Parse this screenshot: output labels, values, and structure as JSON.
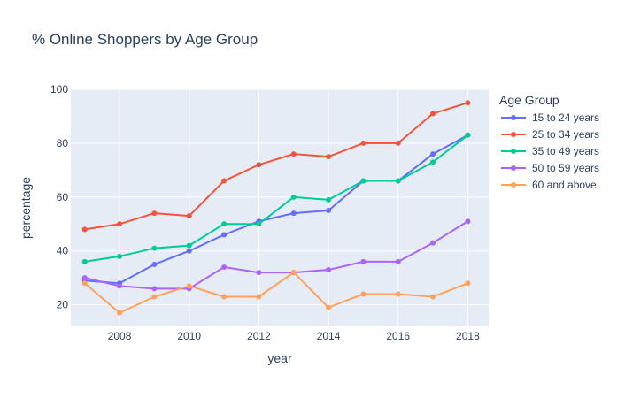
{
  "chart_data": {
    "type": "line",
    "title": "% Online Shoppers by Age Group",
    "xlabel": "year",
    "ylabel": "percentage",
    "legend_title": "Age Group",
    "legend_position": "right",
    "grid": true,
    "xlim": [
      2006.6,
      2018.6
    ],
    "ylim": [
      12,
      100
    ],
    "x": [
      2007,
      2008,
      2009,
      2010,
      2011,
      2012,
      2013,
      2014,
      2015,
      2016,
      2017,
      2018
    ],
    "x_ticks": [
      2008,
      2010,
      2012,
      2014,
      2016,
      2018
    ],
    "y_ticks": [
      20,
      40,
      60,
      80,
      100
    ],
    "series": [
      {
        "name": "15 to 24 years",
        "color": "#636efa",
        "values": [
          29,
          28,
          35,
          40,
          46,
          51,
          54,
          55,
          66,
          66,
          76,
          83
        ]
      },
      {
        "name": "25 to 34 years",
        "color": "#ef553b",
        "values": [
          48,
          50,
          54,
          53,
          66,
          72,
          76,
          75,
          80,
          80,
          91,
          95
        ]
      },
      {
        "name": "35 to 49 years",
        "color": "#00cc96",
        "values": [
          36,
          38,
          41,
          42,
          50,
          50,
          60,
          59,
          66,
          66,
          73,
          83
        ]
      },
      {
        "name": "50 to 59 years",
        "color": "#ab63fa",
        "values": [
          30,
          27,
          26,
          26,
          34,
          32,
          32,
          33,
          36,
          36,
          43,
          51
        ]
      },
      {
        "name": "60 and above",
        "color": "#ffa15a",
        "values": [
          28,
          17,
          23,
          27,
          23,
          23,
          32,
          19,
          24,
          24,
          23,
          28
        ]
      }
    ]
  }
}
